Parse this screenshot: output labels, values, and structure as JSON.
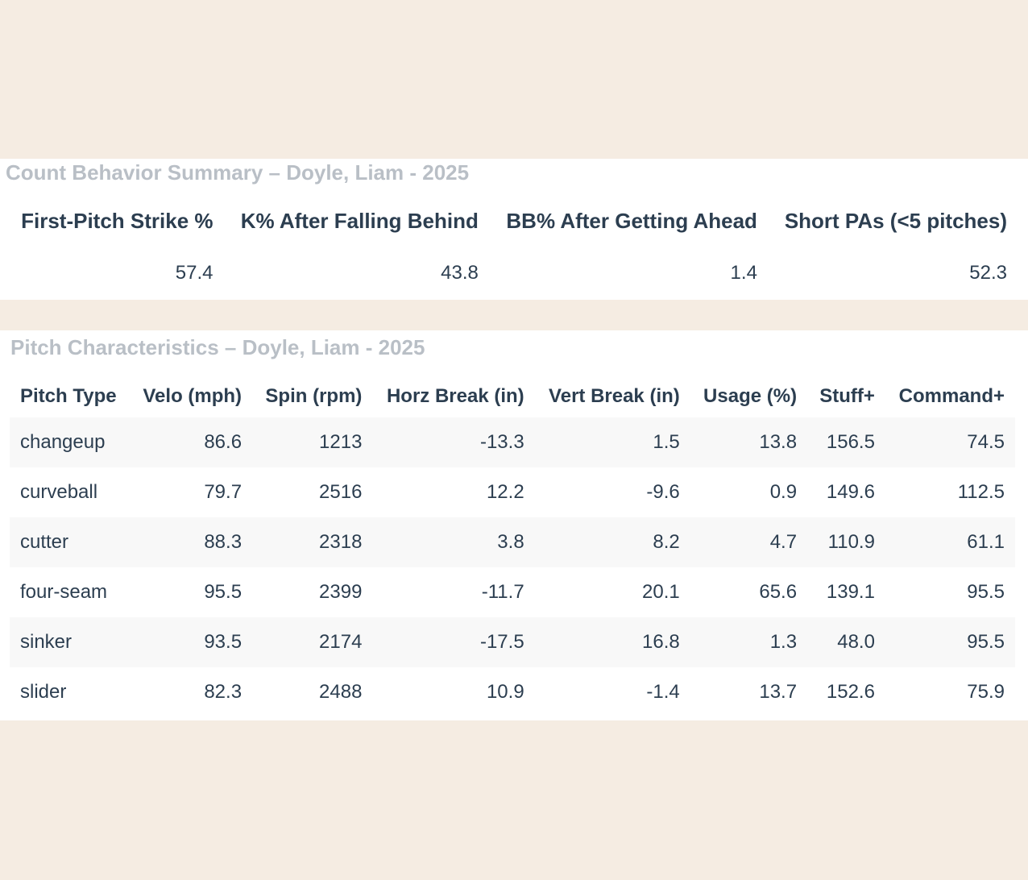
{
  "count_summary": {
    "title": "Count Behavior Summary – Doyle, Liam - 2025",
    "headers": [
      "First-Pitch Strike %",
      "K% After Falling Behind",
      "BB% After Getting Ahead",
      "Short PAs (<5 pitches)"
    ],
    "values": [
      "57.4",
      "43.8",
      "1.4",
      "52.3"
    ]
  },
  "pitch_characteristics": {
    "title": "Pitch Characteristics – Doyle, Liam - 2025",
    "headers": [
      "Pitch Type",
      "Velo (mph)",
      "Spin (rpm)",
      "Horz Break (in)",
      "Vert Break (in)",
      "Usage (%)",
      "Stuff+",
      "Command+"
    ],
    "rows": [
      [
        "changeup",
        "86.6",
        "1213",
        "-13.3",
        "1.5",
        "13.8",
        "156.5",
        "74.5"
      ],
      [
        "curveball",
        "79.7",
        "2516",
        "12.2",
        "-9.6",
        "0.9",
        "149.6",
        "112.5"
      ],
      [
        "cutter",
        "88.3",
        "2318",
        "3.8",
        "8.2",
        "4.7",
        "110.9",
        "61.1"
      ],
      [
        "four-seam",
        "95.5",
        "2399",
        "-11.7",
        "20.1",
        "65.6",
        "139.1",
        "95.5"
      ],
      [
        "sinker",
        "93.5",
        "2174",
        "-17.5",
        "16.8",
        "1.3",
        "48.0",
        "95.5"
      ],
      [
        "slider",
        "82.3",
        "2488",
        "10.9",
        "-1.4",
        "13.7",
        "152.6",
        "75.9"
      ]
    ]
  },
  "colors": {
    "page_background": "#f5ece2",
    "panel_background": "#ffffff",
    "title_text": "#b9bfc6",
    "body_text": "#2c3e50",
    "row_stripe": "#f8f8f8"
  }
}
